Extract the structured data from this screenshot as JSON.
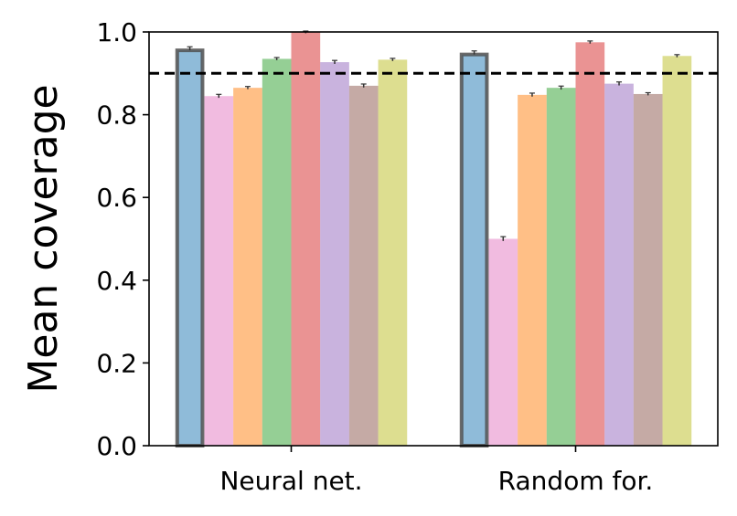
{
  "chart_data": {
    "type": "bar",
    "title": "",
    "xlabel": "",
    "ylabel": "Mean coverage",
    "ylim": [
      0,
      1.0
    ],
    "yticks": [
      "0.0",
      "0.2",
      "0.4",
      "0.6",
      "0.8",
      "1.0"
    ],
    "categories": [
      "Neural net.",
      "Random for."
    ],
    "reference_line": {
      "y": 0.9,
      "style": "dashed",
      "color": "#000000"
    },
    "grid": false,
    "legend": "none",
    "series": [
      {
        "values": [
          0.96,
          0.95
        ],
        "errors": [
          0.002,
          0.002
        ],
        "color": "#1f77b4",
        "highlight": true
      },
      {
        "values": [
          0.845,
          0.5
        ],
        "errors": [
          0.002,
          0.003
        ],
        "color": "#e377c2"
      },
      {
        "values": [
          0.865,
          0.848
        ],
        "errors": [
          0.001,
          0.002
        ],
        "color": "#ff7f0e"
      },
      {
        "values": [
          0.935,
          0.865
        ],
        "errors": [
          0.001,
          0.002
        ],
        "color": "#2ca02c"
      },
      {
        "values": [
          1.0,
          0.975
        ],
        "errors": [
          0.001,
          0.001
        ],
        "color": "#d62728"
      },
      {
        "values": [
          0.927,
          0.875
        ],
        "errors": [
          0.002,
          0.002
        ],
        "color": "#9467bd"
      },
      {
        "values": [
          0.87,
          0.85
        ],
        "errors": [
          0.002,
          0.001
        ],
        "color": "#8c564b"
      },
      {
        "values": [
          0.933,
          0.942
        ],
        "errors": [
          0.001,
          0.001
        ],
        "color": "#bcbd22"
      }
    ]
  }
}
